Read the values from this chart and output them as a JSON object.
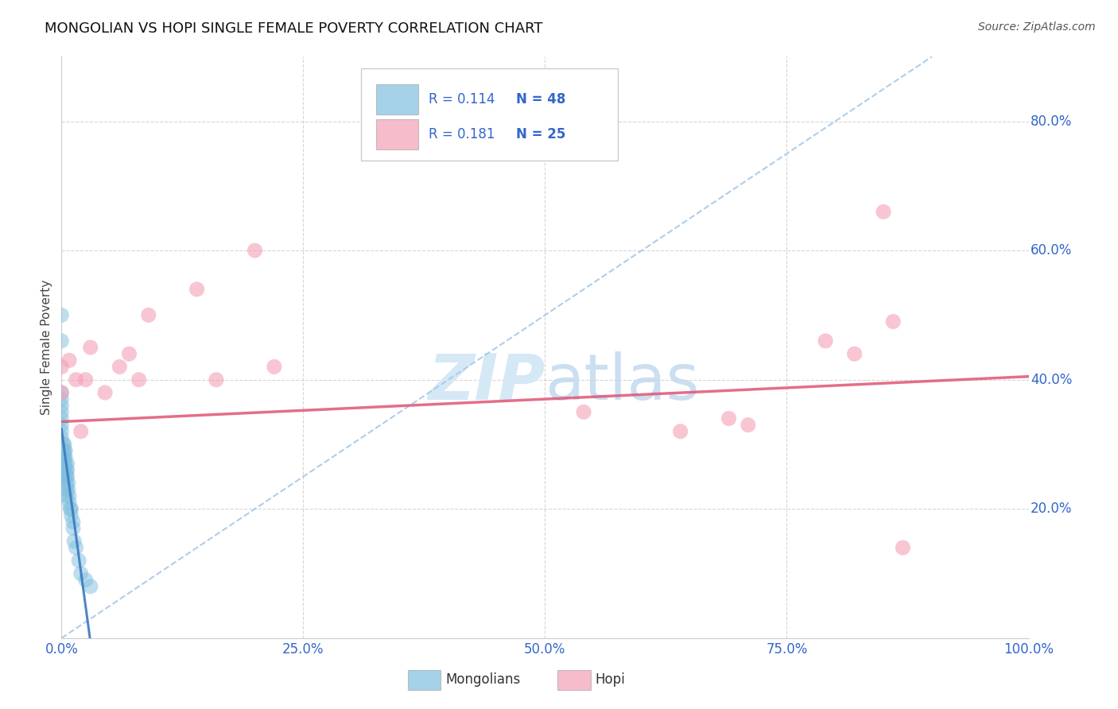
{
  "title": "MONGOLIAN VS HOPI SINGLE FEMALE POVERTY CORRELATION CHART",
  "source": "Source: ZipAtlas.com",
  "ylabel": "Single Female Poverty",
  "xlim": [
    0.0,
    1.0
  ],
  "ylim": [
    0.0,
    0.9
  ],
  "yticks": [
    0.2,
    0.4,
    0.6,
    0.8
  ],
  "xticks": [
    0.0,
    0.25,
    0.5,
    0.75,
    1.0
  ],
  "mongolian_R": 0.114,
  "mongolian_N": 48,
  "hopi_R": 0.181,
  "hopi_N": 25,
  "mongolian_color": "#7fbfdf",
  "hopi_color": "#f4a0b5",
  "trend_mongolian_color": "#3a7abf",
  "trend_hopi_color": "#e05575",
  "diagonal_color": "#a8c8e8",
  "tick_color": "#3366cc",
  "watermark_color": "#d4e8f5",
  "mongo_x": [
    0.0,
    0.0,
    0.0,
    0.0,
    0.0,
    0.0,
    0.0,
    0.0,
    0.0,
    0.0,
    0.002,
    0.002,
    0.002,
    0.002,
    0.002,
    0.002,
    0.003,
    0.003,
    0.003,
    0.003,
    0.003,
    0.003,
    0.004,
    0.004,
    0.004,
    0.005,
    0.005,
    0.005,
    0.005,
    0.005,
    0.006,
    0.006,
    0.006,
    0.007,
    0.007,
    0.008,
    0.008,
    0.009,
    0.01,
    0.01,
    0.012,
    0.012,
    0.013,
    0.015,
    0.018,
    0.02,
    0.025,
    0.03
  ],
  "mongo_y": [
    0.5,
    0.46,
    0.38,
    0.37,
    0.36,
    0.35,
    0.34,
    0.33,
    0.32,
    0.31,
    0.3,
    0.29,
    0.28,
    0.27,
    0.26,
    0.25,
    0.3,
    0.29,
    0.28,
    0.27,
    0.26,
    0.25,
    0.29,
    0.28,
    0.27,
    0.26,
    0.25,
    0.24,
    0.23,
    0.22,
    0.27,
    0.26,
    0.25,
    0.24,
    0.23,
    0.22,
    0.21,
    0.2,
    0.2,
    0.19,
    0.18,
    0.17,
    0.15,
    0.14,
    0.12,
    0.1,
    0.09,
    0.08
  ],
  "hopi_x": [
    0.0,
    0.0,
    0.008,
    0.015,
    0.02,
    0.025,
    0.03,
    0.045,
    0.06,
    0.07,
    0.08,
    0.09,
    0.14,
    0.16,
    0.2,
    0.22,
    0.54,
    0.64,
    0.69,
    0.71,
    0.79,
    0.82,
    0.85,
    0.86,
    0.87
  ],
  "hopi_y": [
    0.38,
    0.42,
    0.43,
    0.4,
    0.32,
    0.4,
    0.45,
    0.38,
    0.42,
    0.44,
    0.4,
    0.5,
    0.54,
    0.4,
    0.6,
    0.42,
    0.35,
    0.32,
    0.34,
    0.33,
    0.46,
    0.44,
    0.66,
    0.49,
    0.14
  ],
  "hopi_trend_x0": 0.0,
  "hopi_trend_y0": 0.335,
  "hopi_trend_x1": 1.0,
  "hopi_trend_y1": 0.405
}
